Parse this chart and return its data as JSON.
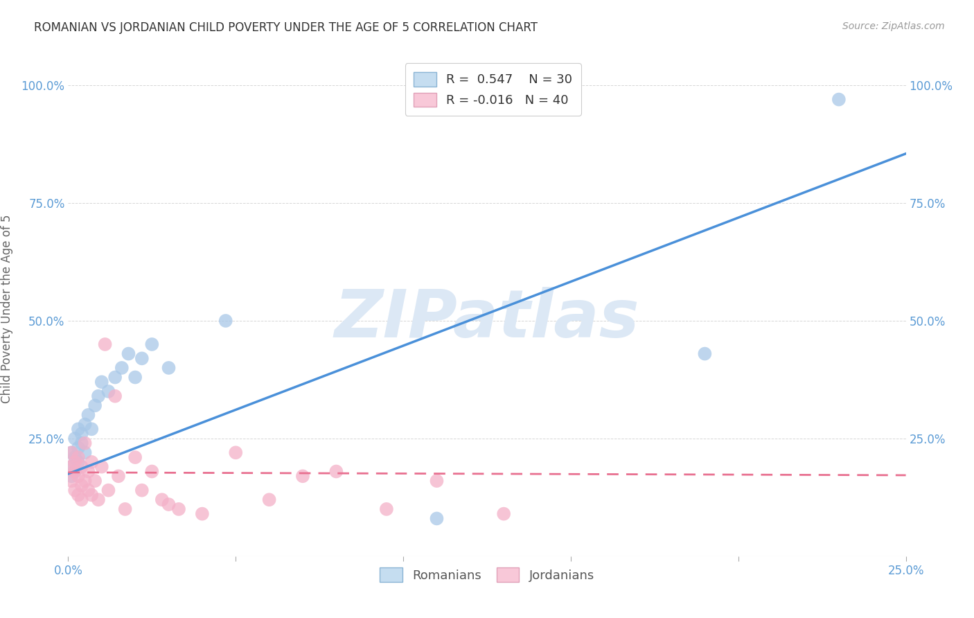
{
  "title": "ROMANIAN VS JORDANIAN CHILD POVERTY UNDER THE AGE OF 5 CORRELATION CHART",
  "source": "Source: ZipAtlas.com",
  "ylabel": "Child Poverty Under the Age of 5",
  "xlim": [
    0.0,
    0.25
  ],
  "ylim": [
    0.0,
    1.05
  ],
  "xticks": [
    0.0,
    0.05,
    0.1,
    0.15,
    0.2,
    0.25
  ],
  "yticks": [
    0.0,
    0.25,
    0.5,
    0.75,
    1.0
  ],
  "xtick_labels": [
    "0.0%",
    "",
    "",
    "",
    "",
    "25.0%"
  ],
  "ytick_labels": [
    "",
    "25.0%",
    "50.0%",
    "75.0%",
    "100.0%"
  ],
  "romanian_R": 0.547,
  "romanian_N": 30,
  "jordanian_R": -0.016,
  "jordanian_N": 40,
  "romanian_color": "#a8c8e8",
  "jordanian_color": "#f4b0c8",
  "romanian_line_color": "#4a90d9",
  "jordanian_line_color": "#e87090",
  "watermark": "ZIPatlas",
  "watermark_color": "#dce8f5",
  "background_color": "#ffffff",
  "romanian_x": [
    0.001,
    0.001,
    0.001,
    0.002,
    0.002,
    0.002,
    0.003,
    0.003,
    0.003,
    0.004,
    0.004,
    0.005,
    0.005,
    0.006,
    0.007,
    0.008,
    0.009,
    0.01,
    0.012,
    0.014,
    0.016,
    0.018,
    0.02,
    0.022,
    0.025,
    0.03,
    0.047,
    0.11,
    0.19,
    0.23
  ],
  "romanian_y": [
    0.19,
    0.22,
    0.17,
    0.25,
    0.21,
    0.18,
    0.27,
    0.23,
    0.2,
    0.26,
    0.24,
    0.28,
    0.22,
    0.3,
    0.27,
    0.32,
    0.34,
    0.37,
    0.35,
    0.38,
    0.4,
    0.43,
    0.38,
    0.42,
    0.45,
    0.4,
    0.5,
    0.08,
    0.43,
    0.97
  ],
  "jordanian_x": [
    0.001,
    0.001,
    0.001,
    0.002,
    0.002,
    0.002,
    0.003,
    0.003,
    0.003,
    0.004,
    0.004,
    0.004,
    0.005,
    0.005,
    0.006,
    0.006,
    0.007,
    0.007,
    0.008,
    0.009,
    0.01,
    0.011,
    0.012,
    0.014,
    0.015,
    0.017,
    0.02,
    0.022,
    0.025,
    0.028,
    0.03,
    0.033,
    0.04,
    0.05,
    0.06,
    0.07,
    0.08,
    0.095,
    0.11,
    0.13
  ],
  "jordanian_y": [
    0.19,
    0.16,
    0.22,
    0.18,
    0.14,
    0.2,
    0.17,
    0.13,
    0.21,
    0.15,
    0.19,
    0.12,
    0.24,
    0.16,
    0.18,
    0.14,
    0.2,
    0.13,
    0.16,
    0.12,
    0.19,
    0.45,
    0.14,
    0.34,
    0.17,
    0.1,
    0.21,
    0.14,
    0.18,
    0.12,
    0.11,
    0.1,
    0.09,
    0.22,
    0.12,
    0.17,
    0.18,
    0.1,
    0.16,
    0.09
  ]
}
